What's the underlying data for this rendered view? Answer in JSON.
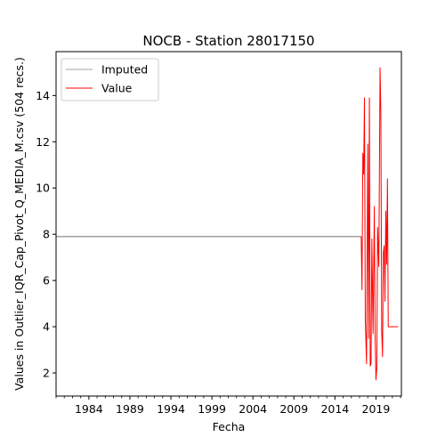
{
  "chart_data": {
    "type": "line",
    "title": "NOCB - Station 28017150",
    "xlabel": "Fecha",
    "ylabel": "Values in Outlier_IQR_Cap_Pivot_Q_MEDIA_M.csv (504 recs.)",
    "xlim": [
      1980.0,
      2022.1
    ],
    "ylim": [
      1.0,
      15.9
    ],
    "x_ticks": [
      1984,
      1989,
      1994,
      1999,
      2004,
      2009,
      2014,
      2019
    ],
    "x_tick_labels": [
      "1984",
      "1989",
      "1994",
      "1999",
      "2004",
      "2009",
      "2014",
      "2019"
    ],
    "y_ticks": [
      2,
      4,
      6,
      8,
      10,
      12,
      14
    ],
    "y_tick_labels": [
      "2",
      "4",
      "6",
      "8",
      "10",
      "12",
      "14"
    ],
    "legend": {
      "placement": "top-left",
      "entries": [
        "Imputed",
        "Value"
      ]
    },
    "grid": false,
    "series": [
      {
        "name": "Imputed",
        "color": "#808080",
        "x": [
          1980.0,
          2017.2
        ],
        "y": [
          7.9,
          7.9
        ]
      },
      {
        "name": "Value",
        "color": "#ff0000",
        "x": [
          2017.2,
          2017.3,
          2017.4,
          2017.5,
          2017.6,
          2017.7,
          2017.85,
          2018.0,
          2018.1,
          2018.2,
          2018.3,
          2018.4,
          2018.5,
          2018.65,
          2018.8,
          2018.9,
          2019.0,
          2019.1,
          2019.2,
          2019.35,
          2019.5,
          2019.6,
          2019.7,
          2019.8,
          2019.9,
          2020.0,
          2020.1,
          2020.2,
          2020.3,
          2020.4,
          2020.5,
          2020.6,
          2020.7,
          2020.8,
          2020.9,
          2021.0,
          2021.1,
          2021.2,
          2021.3,
          2021.4,
          2021.5,
          2021.6,
          2021.7
        ],
        "y": [
          7.9,
          5.6,
          11.5,
          10.6,
          13.9,
          4.3,
          2.4,
          11.9,
          3.5,
          13.9,
          2.3,
          2.4,
          7.8,
          3.7,
          9.2,
          3.5,
          1.7,
          2.2,
          8.3,
          6.6,
          15.2,
          13.1,
          3.8,
          2.7,
          7.2,
          7.5,
          5.1,
          9.0,
          6.7,
          10.4,
          4.0,
          4.0,
          4.0,
          4.0,
          4.0,
          4.0,
          4.0,
          4.0,
          4.0,
          4.0,
          4.0,
          4.0,
          4.0
        ]
      }
    ]
  }
}
